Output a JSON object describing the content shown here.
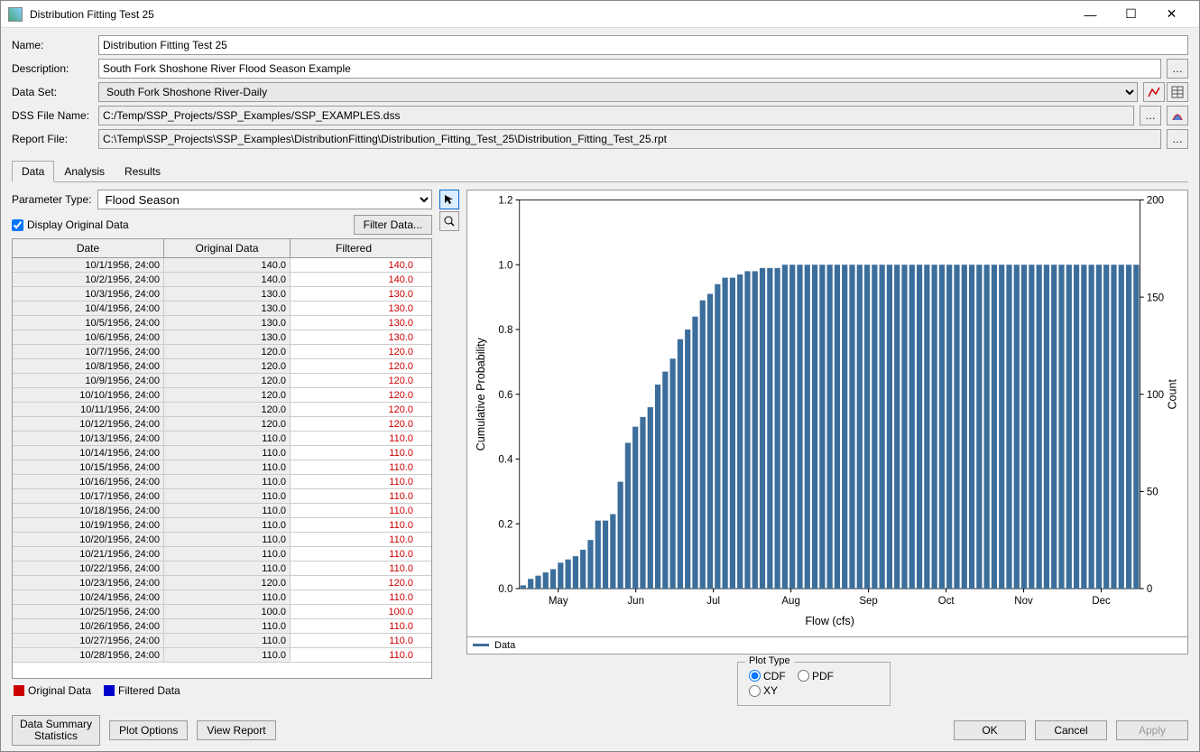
{
  "window": {
    "title": "Distribution Fitting Test 25"
  },
  "form": {
    "name_label": "Name:",
    "name_value": "Distribution Fitting Test 25",
    "desc_label": "Description:",
    "desc_value": "South Fork Shoshone River Flood Season Example",
    "dataset_label": "Data Set:",
    "dataset_value": "South Fork Shoshone River-Daily",
    "dss_label": "DSS File Name:",
    "dss_value": "C:/Temp/SSP_Projects/SSP_Examples/SSP_EXAMPLES.dss",
    "report_label": "Report File:",
    "report_value": "C:\\Temp\\SSP_Projects\\SSP_Examples\\DistributionFitting\\Distribution_Fitting_Test_25\\Distribution_Fitting_Test_25.rpt"
  },
  "tabs": {
    "data": "Data",
    "analysis": "Analysis",
    "results": "Results"
  },
  "param": {
    "label": "Parameter Type:",
    "value": "Flood Season"
  },
  "display_original": "Display Original Data",
  "filter_btn": "Filter Data...",
  "grid": {
    "headers": {
      "date": "Date",
      "orig": "Original Data",
      "filt": "Filtered"
    },
    "rows": [
      {
        "d": "10/1/1956, 24:00",
        "o": "140.0",
        "f": "140.0"
      },
      {
        "d": "10/2/1956, 24:00",
        "o": "140.0",
        "f": "140.0"
      },
      {
        "d": "10/3/1956, 24:00",
        "o": "130.0",
        "f": "130.0"
      },
      {
        "d": "10/4/1956, 24:00",
        "o": "130.0",
        "f": "130.0"
      },
      {
        "d": "10/5/1956, 24:00",
        "o": "130.0",
        "f": "130.0"
      },
      {
        "d": "10/6/1956, 24:00",
        "o": "130.0",
        "f": "130.0"
      },
      {
        "d": "10/7/1956, 24:00",
        "o": "120.0",
        "f": "120.0"
      },
      {
        "d": "10/8/1956, 24:00",
        "o": "120.0",
        "f": "120.0"
      },
      {
        "d": "10/9/1956, 24:00",
        "o": "120.0",
        "f": "120.0"
      },
      {
        "d": "10/10/1956, 24:00",
        "o": "120.0",
        "f": "120.0"
      },
      {
        "d": "10/11/1956, 24:00",
        "o": "120.0",
        "f": "120.0"
      },
      {
        "d": "10/12/1956, 24:00",
        "o": "120.0",
        "f": "120.0"
      },
      {
        "d": "10/13/1956, 24:00",
        "o": "110.0",
        "f": "110.0"
      },
      {
        "d": "10/14/1956, 24:00",
        "o": "110.0",
        "f": "110.0"
      },
      {
        "d": "10/15/1956, 24:00",
        "o": "110.0",
        "f": "110.0"
      },
      {
        "d": "10/16/1956, 24:00",
        "o": "110.0",
        "f": "110.0"
      },
      {
        "d": "10/17/1956, 24:00",
        "o": "110.0",
        "f": "110.0"
      },
      {
        "d": "10/18/1956, 24:00",
        "o": "110.0",
        "f": "110.0"
      },
      {
        "d": "10/19/1956, 24:00",
        "o": "110.0",
        "f": "110.0"
      },
      {
        "d": "10/20/1956, 24:00",
        "o": "110.0",
        "f": "110.0"
      },
      {
        "d": "10/21/1956, 24:00",
        "o": "110.0",
        "f": "110.0"
      },
      {
        "d": "10/22/1956, 24:00",
        "o": "110.0",
        "f": "110.0"
      },
      {
        "d": "10/23/1956, 24:00",
        "o": "120.0",
        "f": "120.0"
      },
      {
        "d": "10/24/1956, 24:00",
        "o": "110.0",
        "f": "110.0"
      },
      {
        "d": "10/25/1956, 24:00",
        "o": "100.0",
        "f": "100.0"
      },
      {
        "d": "10/26/1956, 24:00",
        "o": "110.0",
        "f": "110.0"
      },
      {
        "d": "10/27/1956, 24:00",
        "o": "110.0",
        "f": "110.0"
      },
      {
        "d": "10/28/1956, 24:00",
        "o": "110.0",
        "f": "110.0"
      }
    ]
  },
  "legend": {
    "orig": "Original Data",
    "filt": "Filtered Data",
    "orig_color": "#cc0000",
    "filt_color": "#0000cc"
  },
  "chart": {
    "type": "bar",
    "ylabel": "Cumulative Probability",
    "y2label": "Count",
    "xlabel": "Flow (cfs)",
    "legend_item": "Data",
    "bar_color": "#3c6e9c",
    "background": "#ffffff",
    "ylim": [
      0,
      1.2
    ],
    "yticks": [
      0.0,
      0.2,
      0.4,
      0.6,
      0.8,
      1.0,
      1.2
    ],
    "y2lim": [
      0,
      200
    ],
    "y2ticks": [
      0,
      50,
      100,
      150,
      200
    ],
    "xticks": [
      "May",
      "Jun",
      "Jul",
      "Aug",
      "Sep",
      "Oct",
      "Nov",
      "Dec"
    ],
    "values": [
      0.01,
      0.03,
      0.04,
      0.05,
      0.06,
      0.08,
      0.09,
      0.1,
      0.12,
      0.15,
      0.21,
      0.21,
      0.23,
      0.33,
      0.45,
      0.5,
      0.53,
      0.56,
      0.63,
      0.67,
      0.71,
      0.77,
      0.8,
      0.84,
      0.89,
      0.91,
      0.94,
      0.96,
      0.96,
      0.97,
      0.98,
      0.98,
      0.99,
      0.99,
      0.99,
      1.0,
      1.0,
      1.0,
      1.0,
      1.0,
      1.0,
      1.0,
      1.0,
      1.0,
      1.0,
      1.0,
      1.0,
      1.0,
      1.0,
      1.0,
      1.0,
      1.0,
      1.0,
      1.0,
      1.0,
      1.0,
      1.0,
      1.0,
      1.0,
      1.0,
      1.0,
      1.0,
      1.0,
      1.0,
      1.0,
      1.0,
      1.0,
      1.0,
      1.0,
      1.0,
      1.0,
      1.0,
      1.0,
      1.0,
      1.0,
      1.0,
      1.0,
      1.0,
      1.0,
      1.0,
      1.0,
      1.0,
      1.0
    ]
  },
  "plot_type": {
    "title": "Plot Type",
    "cdf": "CDF",
    "pdf": "PDF",
    "xy": "XY",
    "selected": "cdf"
  },
  "footer": {
    "summary": "Data Summary\nStatistics",
    "plot_opts": "Plot Options",
    "view_report": "View Report",
    "ok": "OK",
    "cancel": "Cancel",
    "apply": "Apply"
  }
}
